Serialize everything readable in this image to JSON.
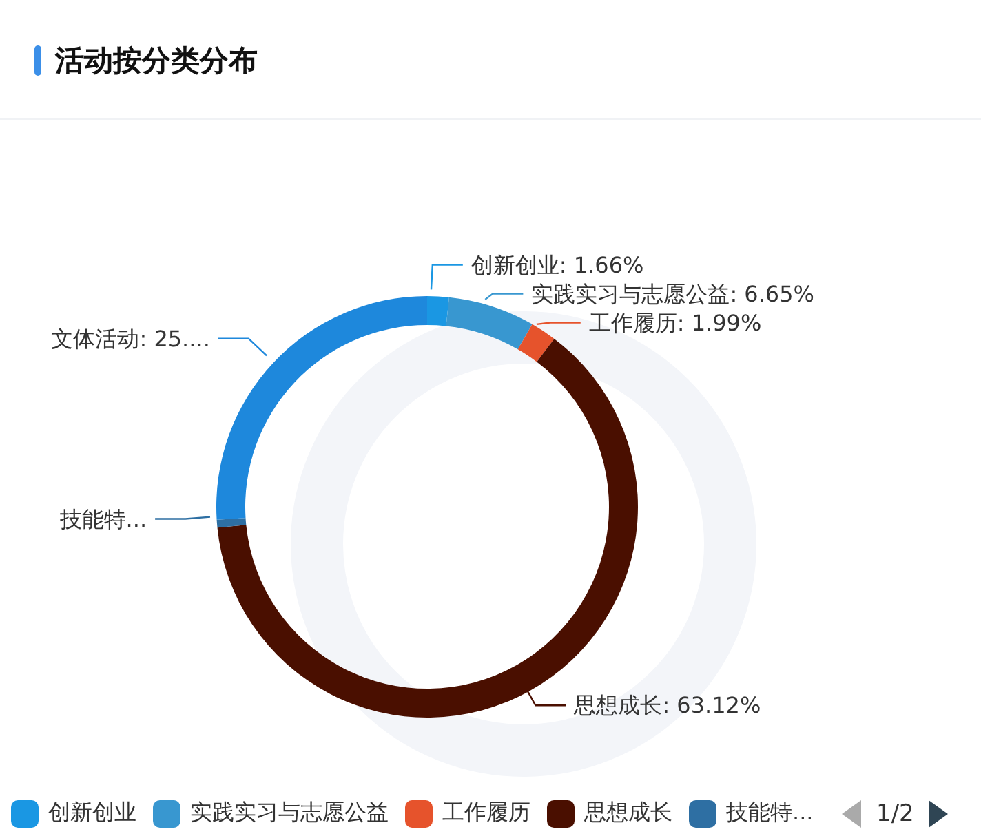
{
  "chart_data": {
    "type": "donut",
    "title": "活动按分类分布",
    "categories": [
      "创新创业",
      "实践实习与志愿公益",
      "工作履历",
      "思想成长",
      "技能特...",
      "文体活动"
    ],
    "values": [
      1.66,
      6.65,
      1.99,
      63.12,
      0.6,
      25.98
    ],
    "value_labels": [
      ": 1.66%",
      ": 6.65%",
      ": 1.99%",
      ": 63.12%",
      null,
      ": 25...."
    ],
    "colors": [
      "#1a97e3",
      "#3897d0",
      "#e6532c",
      "#4a0f00",
      "#2e6fa3",
      "#1e88dc"
    ],
    "legend": "bottom",
    "annotations": [
      "1/2"
    ]
  }
}
